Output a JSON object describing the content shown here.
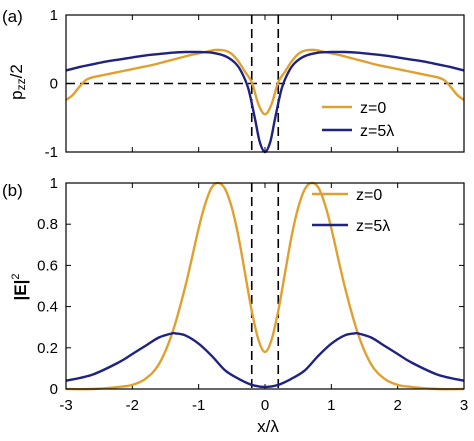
{
  "colors": {
    "z0": "#E0A030",
    "z5": "#1F237F"
  },
  "chart_data": [
    {
      "panel_label": "(a)",
      "type": "line",
      "ylabel": "pzz/2",
      "ylabel_main": "p",
      "ylabel_sub": "zz",
      "ylabel_tail": "/2",
      "xlim": [
        -3,
        3
      ],
      "ylim": [
        -1,
        1
      ],
      "xticks": [
        -3,
        -2,
        -1,
        0,
        1,
        2,
        3
      ],
      "yticks": [
        -1,
        0,
        1
      ],
      "ytick_labels": [
        "-1",
        "0",
        "1"
      ],
      "dashed_vlines": [
        -0.2,
        0.2
      ],
      "dashed_hline": 0,
      "legend": {
        "placement": "bottom-right",
        "entries": [
          "z=0",
          "z=5λ"
        ]
      },
      "series": [
        {
          "name": "z=0",
          "x": [
            -3.0,
            -2.9,
            -2.8,
            -2.7,
            -2.6,
            -2.5,
            -2.3,
            -2.1,
            -1.9,
            -1.7,
            -1.5,
            -1.3,
            -1.1,
            -0.9,
            -0.75,
            -0.6,
            -0.5,
            -0.4,
            -0.3,
            -0.2,
            -0.1,
            0.0,
            0.1,
            0.2,
            0.3,
            0.4,
            0.5,
            0.6,
            0.75,
            0.9,
            1.1,
            1.3,
            1.5,
            1.7,
            1.9,
            2.1,
            2.3,
            2.5,
            2.6,
            2.7,
            2.8,
            2.9,
            3.0
          ],
          "y": [
            -0.24,
            -0.17,
            -0.05,
            0.05,
            0.09,
            0.11,
            0.15,
            0.19,
            0.23,
            0.27,
            0.32,
            0.37,
            0.42,
            0.46,
            0.49,
            0.48,
            0.43,
            0.32,
            0.17,
            0.02,
            -0.3,
            -0.45,
            -0.3,
            0.02,
            0.17,
            0.32,
            0.43,
            0.48,
            0.49,
            0.46,
            0.42,
            0.37,
            0.32,
            0.27,
            0.23,
            0.19,
            0.15,
            0.11,
            0.09,
            0.05,
            -0.05,
            -0.17,
            -0.24
          ]
        },
        {
          "name": "z=5λ",
          "x": [
            -3.0,
            -2.8,
            -2.6,
            -2.4,
            -2.2,
            -2.0,
            -1.8,
            -1.6,
            -1.4,
            -1.2,
            -1.0,
            -0.8,
            -0.6,
            -0.45,
            -0.35,
            -0.25,
            -0.15,
            -0.08,
            0.0,
            0.08,
            0.15,
            0.25,
            0.35,
            0.45,
            0.6,
            0.8,
            1.0,
            1.2,
            1.4,
            1.6,
            1.8,
            2.0,
            2.2,
            2.4,
            2.6,
            2.8,
            3.0
          ],
          "y": [
            0.19,
            0.24,
            0.28,
            0.32,
            0.35,
            0.38,
            0.41,
            0.43,
            0.45,
            0.46,
            0.46,
            0.45,
            0.4,
            0.3,
            0.16,
            -0.08,
            -0.52,
            -0.85,
            -1.0,
            -0.85,
            -0.52,
            -0.08,
            0.16,
            0.3,
            0.4,
            0.45,
            0.46,
            0.46,
            0.45,
            0.43,
            0.41,
            0.38,
            0.35,
            0.32,
            0.28,
            0.24,
            0.19
          ]
        }
      ]
    },
    {
      "panel_label": "(b)",
      "type": "line",
      "ylabel": "|E|²",
      "ylabel_main": "|E|",
      "ylabel_sup": "2",
      "xlabel": "x/λ",
      "xlim": [
        -3,
        3
      ],
      "ylim": [
        0,
        1
      ],
      "xticks": [
        -3,
        -2,
        -1,
        0,
        1,
        2,
        3
      ],
      "xtick_labels": [
        "-3",
        "-2",
        "-1",
        "0",
        "1",
        "2",
        "3"
      ],
      "yticks": [
        0,
        0.2,
        0.4,
        0.6,
        0.8,
        1
      ],
      "ytick_labels": [
        "0",
        "0.2",
        "0.4",
        "0.6",
        "0.8",
        "1"
      ],
      "dashed_vlines": [
        -0.2,
        0.2
      ],
      "legend": {
        "placement": "top-right",
        "entries": [
          "z=0",
          "z=5λ"
        ]
      },
      "series": [
        {
          "name": "z=0",
          "x": [
            -3.0,
            -2.6,
            -2.2,
            -2.0,
            -1.8,
            -1.6,
            -1.4,
            -1.2,
            -1.0,
            -0.9,
            -0.8,
            -0.7,
            -0.6,
            -0.5,
            -0.4,
            -0.3,
            -0.2,
            -0.1,
            0.0,
            0.1,
            0.2,
            0.3,
            0.4,
            0.5,
            0.6,
            0.7,
            0.8,
            0.9,
            1.0,
            1.2,
            1.4,
            1.6,
            1.8,
            2.0,
            2.2,
            2.6,
            3.0
          ],
          "y": [
            0.0,
            0.0,
            0.01,
            0.02,
            0.05,
            0.12,
            0.27,
            0.5,
            0.78,
            0.9,
            0.98,
            1.0,
            0.97,
            0.88,
            0.74,
            0.56,
            0.38,
            0.24,
            0.18,
            0.24,
            0.38,
            0.56,
            0.74,
            0.88,
            0.97,
            1.0,
            0.98,
            0.9,
            0.78,
            0.5,
            0.27,
            0.12,
            0.05,
            0.02,
            0.01,
            0.0,
            0.0
          ]
        },
        {
          "name": "z=5λ",
          "x": [
            -3.0,
            -2.6,
            -2.2,
            -2.0,
            -1.8,
            -1.6,
            -1.4,
            -1.35,
            -1.2,
            -1.0,
            -0.8,
            -0.6,
            -0.4,
            -0.2,
            0.0,
            0.2,
            0.4,
            0.6,
            0.8,
            1.0,
            1.2,
            1.35,
            1.4,
            1.6,
            1.8,
            2.0,
            2.2,
            2.6,
            3.0
          ],
          "y": [
            0.04,
            0.07,
            0.13,
            0.17,
            0.21,
            0.25,
            0.27,
            0.27,
            0.26,
            0.22,
            0.16,
            0.09,
            0.05,
            0.02,
            0.01,
            0.02,
            0.05,
            0.09,
            0.16,
            0.22,
            0.26,
            0.27,
            0.27,
            0.25,
            0.21,
            0.17,
            0.13,
            0.07,
            0.04
          ]
        }
      ]
    }
  ]
}
